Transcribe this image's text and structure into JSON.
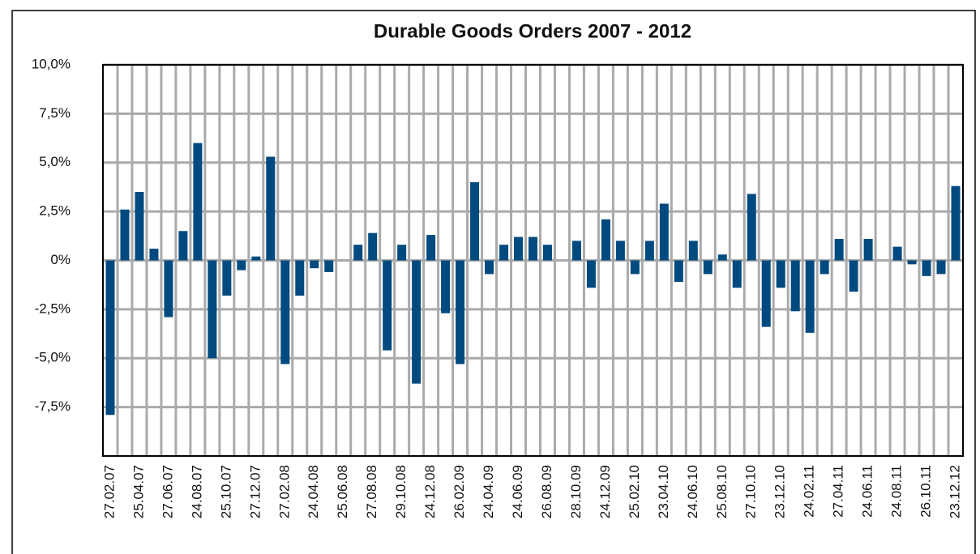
{
  "chart_data": {
    "type": "bar",
    "title": "Durable Goods Orders 2007 - 2012",
    "categories": [
      "27.02.07",
      null,
      "25.04.07",
      null,
      "27.06.07",
      null,
      "24.08.07",
      null,
      "25.10.07",
      null,
      "27.12.07",
      null,
      "27.02.08",
      null,
      "24.04.08",
      null,
      "25.06.08",
      null,
      "27.08.08",
      null,
      "29.10.08",
      null,
      "24.12.08",
      null,
      "26.02.09",
      null,
      "24.04.09",
      null,
      "24.06.09",
      null,
      "26.08.09",
      null,
      "28.10.09",
      null,
      "24.12.09",
      null,
      "25.02.10",
      null,
      "23.04.10",
      null,
      "24.06.10",
      null,
      "25.08.10",
      null,
      "27.10.10",
      null,
      "23.12.10",
      null,
      "24.02.11",
      null,
      "27.04.11",
      null,
      "24.06.11",
      null,
      "24.08.11",
      null,
      "26.10.11",
      null,
      "23.12.12"
    ],
    "values": [
      -7.9,
      2.6,
      3.5,
      0.6,
      -2.9,
      1.5,
      6.0,
      -5.0,
      -1.8,
      -0.5,
      0.2,
      5.3,
      -5.3,
      -1.8,
      -0.4,
      -0.6,
      0,
      0.8,
      1.4,
      -4.6,
      0.8,
      -6.3,
      1.3,
      -2.7,
      -5.3,
      4.0,
      -0.7,
      0.8,
      1.2,
      1.2,
      0.8,
      0,
      1.0,
      -1.4,
      2.1,
      1.0,
      -0.7,
      1.0,
      2.9,
      -1.1,
      1.0,
      -0.7,
      0.3,
      -1.4,
      3.4,
      -3.4,
      -1.4,
      -2.6,
      -3.7,
      -0.7,
      1.1,
      -1.6,
      1.1,
      0,
      0.7,
      -0.2,
      -0.8,
      -0.7,
      3.8
    ],
    "color": "#004a7f",
    "ylim": [
      -10,
      10
    ],
    "yticks": [
      {
        "value": 10,
        "label": "10,0%"
      },
      {
        "value": 7.5,
        "label": "7,5%"
      },
      {
        "value": 5,
        "label": "5,0%"
      },
      {
        "value": 2.5,
        "label": "2,5%"
      },
      {
        "value": 0,
        "label": "0%"
      },
      {
        "value": -2.5,
        "label": "-2,5%"
      },
      {
        "value": -5,
        "label": "-5,0%"
      },
      {
        "value": -7.5,
        "label": "-7,5%"
      }
    ],
    "grid": true
  }
}
